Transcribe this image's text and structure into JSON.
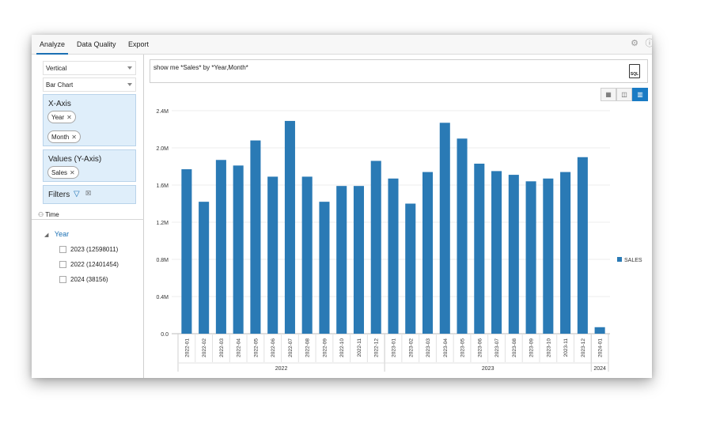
{
  "tabs": [
    {
      "label": "Analyze",
      "active": true
    },
    {
      "label": "Data Quality",
      "active": false
    },
    {
      "label": "Export",
      "active": false
    }
  ],
  "top_icons": [
    "gear-icon",
    "help-icon"
  ],
  "left_panel": {
    "orientation_select": "Vertical",
    "chart_type_select": "Bar Chart",
    "x_axis": {
      "title": "X-Axis",
      "pills": [
        "Year",
        "Month"
      ]
    },
    "values": {
      "title": "Values (Y-Axis)",
      "pills": [
        "Sales"
      ]
    },
    "filters": {
      "title": "Filters"
    },
    "tree": {
      "root": "Time",
      "level": "Year",
      "items": [
        "2023 (12598011)",
        "2022 (12401454)",
        "2024 (38156)"
      ]
    }
  },
  "query": {
    "text": "show me *Sales* by *Year,Month*",
    "sql_label": "SQL"
  },
  "view_buttons": [
    {
      "icon": "table-icon",
      "active": false
    },
    {
      "icon": "pivot-icon",
      "active": false
    },
    {
      "icon": "bar-chart-icon",
      "active": true
    }
  ],
  "colors": {
    "bar": "#2a7ab5",
    "accent": "#1a6fb3"
  },
  "chart_data": {
    "type": "bar",
    "categories": [
      "2022-01",
      "2022-02",
      "2022-03",
      "2022-04",
      "2022-05",
      "2022-06",
      "2022-07",
      "2022-08",
      "2022-09",
      "2022-10",
      "2022-11",
      "2022-12",
      "2023-01",
      "2023-02",
      "2023-03",
      "2023-04",
      "2023-05",
      "2023-06",
      "2023-07",
      "2023-08",
      "2023-09",
      "2023-10",
      "2023-11",
      "2023-12",
      "2024-01"
    ],
    "groups": [
      {
        "label": "2022",
        "count": 12
      },
      {
        "label": "2023",
        "count": 12
      },
      {
        "label": "2024",
        "count": 1
      }
    ],
    "series": [
      {
        "name": "SALES",
        "values": [
          1770000,
          1420000,
          1870000,
          1810000,
          2080000,
          1690000,
          2290000,
          1690000,
          1420000,
          1590000,
          1590000,
          1860000,
          1670000,
          1400000,
          1740000,
          2270000,
          2100000,
          1830000,
          1750000,
          1710000,
          1640000,
          1670000,
          1740000,
          1900000,
          70000
        ]
      }
    ],
    "yticks": [
      "0.0",
      "0.4M",
      "0.8M",
      "1.2M",
      "1.6M",
      "2.0M",
      "2.4M"
    ],
    "ylim": [
      0,
      2400000
    ],
    "legend_position": "right",
    "grid": true
  }
}
